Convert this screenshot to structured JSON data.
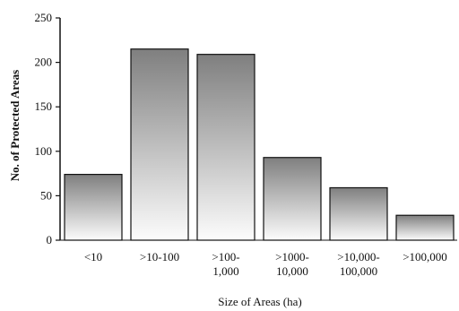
{
  "chart_data": {
    "type": "bar",
    "title": "",
    "xlabel": "Size of Areas (ha)",
    "ylabel": "No. of Protected Areas",
    "ylim": [
      0,
      250
    ],
    "yticks": [
      0,
      50,
      100,
      150,
      200,
      250
    ],
    "grid": false,
    "legend": "none",
    "categories": [
      [
        "<10"
      ],
      [
        ">10-100"
      ],
      [
        ">100-",
        "1,000"
      ],
      [
        ">1000-",
        "10,000"
      ],
      [
        ">10,000-",
        "100,000"
      ],
      [
        ">100,000"
      ]
    ],
    "values": [
      74,
      215,
      209,
      93,
      59,
      28
    ],
    "colors": {
      "bar_top": "#7f7f7f",
      "bar_bottom": "#fcfcfc",
      "bar_stroke": "#111111",
      "axis": "#111111"
    }
  }
}
